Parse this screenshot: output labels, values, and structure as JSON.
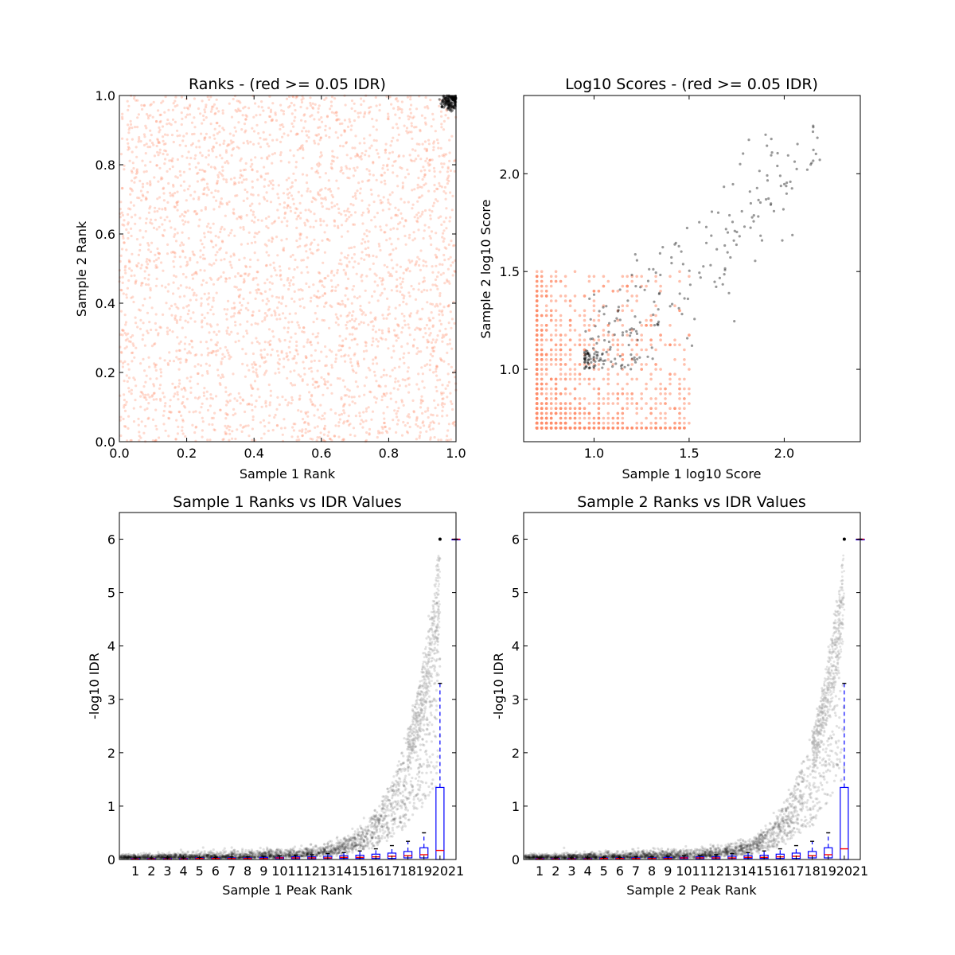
{
  "colors": {
    "red": "#ff8c69",
    "black": "#000000",
    "grey": "#b0b0b0",
    "box": "#0000ff",
    "median": "#ff0000"
  },
  "chart_data": [
    {
      "type": "scatter",
      "title": "Ranks - (red >= 0.05 IDR)",
      "xlabel": "Sample 1 Rank",
      "ylabel": "Sample 2 Rank",
      "xlim": [
        0.0,
        1.0
      ],
      "ylim": [
        0.0,
        1.0
      ],
      "xticks": [
        "0.0",
        "0.2",
        "0.4",
        "0.6",
        "0.8",
        "1.0"
      ],
      "yticks": [
        "0.0",
        "0.2",
        "0.4",
        "0.6",
        "0.8",
        "1.0"
      ],
      "series": [
        {
          "name": "IDR >= 0.05",
          "color": "#ff8c69",
          "description": "dense uniform cloud covering [0,1] x [0,1]"
        },
        {
          "name": "IDR < 0.05",
          "color": "#000000",
          "description": "small cluster near (1.0, 1.0)",
          "x_range": [
            0.95,
            1.0
          ],
          "y_range": [
            0.95,
            1.0
          ]
        }
      ]
    },
    {
      "type": "scatter",
      "title": "Log10 Scores - (red >= 0.05 IDR)",
      "xlabel": "Sample 1 log10 Score",
      "ylabel": "Sample 2 log10 Score",
      "xlim": [
        0.63,
        2.4
      ],
      "ylim": [
        0.63,
        2.4
      ],
      "xticks": [
        "1.0",
        "1.5",
        "2.0"
      ],
      "yticks": [
        "1.0",
        "1.5",
        "2.0"
      ],
      "series": [
        {
          "name": "IDR >= 0.05",
          "color": "#ff8c69",
          "x_range": [
            0.69,
            1.5
          ],
          "y_range": [
            0.69,
            1.5
          ]
        },
        {
          "name": "IDR < 0.05",
          "color": "#000000",
          "x_range": [
            0.95,
            2.2
          ],
          "y_range": [
            1.0,
            2.25
          ]
        }
      ]
    },
    {
      "type": "box",
      "title": "Sample 1 Ranks vs IDR Values",
      "xlabel": "Sample 1 Peak Rank",
      "ylabel": "-log10 IDR",
      "ylim": [
        0,
        6.5
      ],
      "yticks": [
        "0",
        "1",
        "2",
        "3",
        "4",
        "5",
        "6"
      ],
      "categories": [
        "1",
        "2",
        "3",
        "4",
        "5",
        "6",
        "7",
        "8",
        "9",
        "10",
        "11",
        "12",
        "13",
        "14",
        "15",
        "16",
        "17",
        "18",
        "19",
        "20",
        "21"
      ],
      "whisker_high": [
        0.03,
        0.03,
        0.03,
        0.03,
        0.04,
        0.04,
        0.05,
        0.05,
        0.06,
        0.07,
        0.08,
        0.09,
        0.11,
        0.13,
        0.16,
        0.2,
        0.26,
        0.34,
        0.5,
        3.3,
        6.0
      ],
      "q3": [
        0.02,
        0.02,
        0.02,
        0.02,
        0.03,
        0.03,
        0.03,
        0.03,
        0.04,
        0.04,
        0.05,
        0.05,
        0.06,
        0.07,
        0.08,
        0.1,
        0.12,
        0.15,
        0.22,
        1.35,
        6.0
      ],
      "median": [
        0.01,
        0.01,
        0.01,
        0.01,
        0.02,
        0.02,
        0.02,
        0.02,
        0.02,
        0.03,
        0.03,
        0.03,
        0.03,
        0.04,
        0.04,
        0.05,
        0.06,
        0.07,
        0.09,
        0.17,
        6.0
      ],
      "q1": [
        0.0,
        0.0,
        0.0,
        0.0,
        0.01,
        0.01,
        0.01,
        0.01,
        0.01,
        0.01,
        0.01,
        0.01,
        0.02,
        0.02,
        0.02,
        0.02,
        0.02,
        0.03,
        0.03,
        0.0,
        6.0
      ],
      "max_outlier": 6.0
    },
    {
      "type": "box",
      "title": "Sample 2 Ranks vs IDR Values",
      "xlabel": "Sample 2 Peak Rank",
      "ylabel": "-log10 IDR",
      "ylim": [
        0,
        6.5
      ],
      "yticks": [
        "0",
        "1",
        "2",
        "3",
        "4",
        "5",
        "6"
      ],
      "categories": [
        "1",
        "2",
        "3",
        "4",
        "5",
        "6",
        "7",
        "8",
        "9",
        "10",
        "11",
        "12",
        "13",
        "14",
        "15",
        "16",
        "17",
        "18",
        "19",
        "20",
        "21"
      ],
      "whisker_high": [
        0.03,
        0.03,
        0.03,
        0.03,
        0.04,
        0.04,
        0.05,
        0.05,
        0.06,
        0.07,
        0.08,
        0.09,
        0.11,
        0.13,
        0.16,
        0.2,
        0.26,
        0.34,
        0.5,
        3.3,
        6.0
      ],
      "q3": [
        0.02,
        0.02,
        0.02,
        0.02,
        0.03,
        0.03,
        0.03,
        0.03,
        0.04,
        0.04,
        0.05,
        0.05,
        0.06,
        0.07,
        0.08,
        0.1,
        0.12,
        0.15,
        0.22,
        1.35,
        6.0
      ],
      "median": [
        0.01,
        0.01,
        0.01,
        0.01,
        0.02,
        0.02,
        0.02,
        0.02,
        0.02,
        0.03,
        0.03,
        0.03,
        0.03,
        0.04,
        0.04,
        0.05,
        0.06,
        0.07,
        0.09,
        0.2,
        6.0
      ],
      "q1": [
        0.0,
        0.0,
        0.0,
        0.0,
        0.01,
        0.01,
        0.01,
        0.01,
        0.01,
        0.01,
        0.01,
        0.01,
        0.02,
        0.02,
        0.02,
        0.02,
        0.02,
        0.03,
        0.03,
        0.0,
        6.0
      ],
      "max_outlier": 6.0
    }
  ]
}
